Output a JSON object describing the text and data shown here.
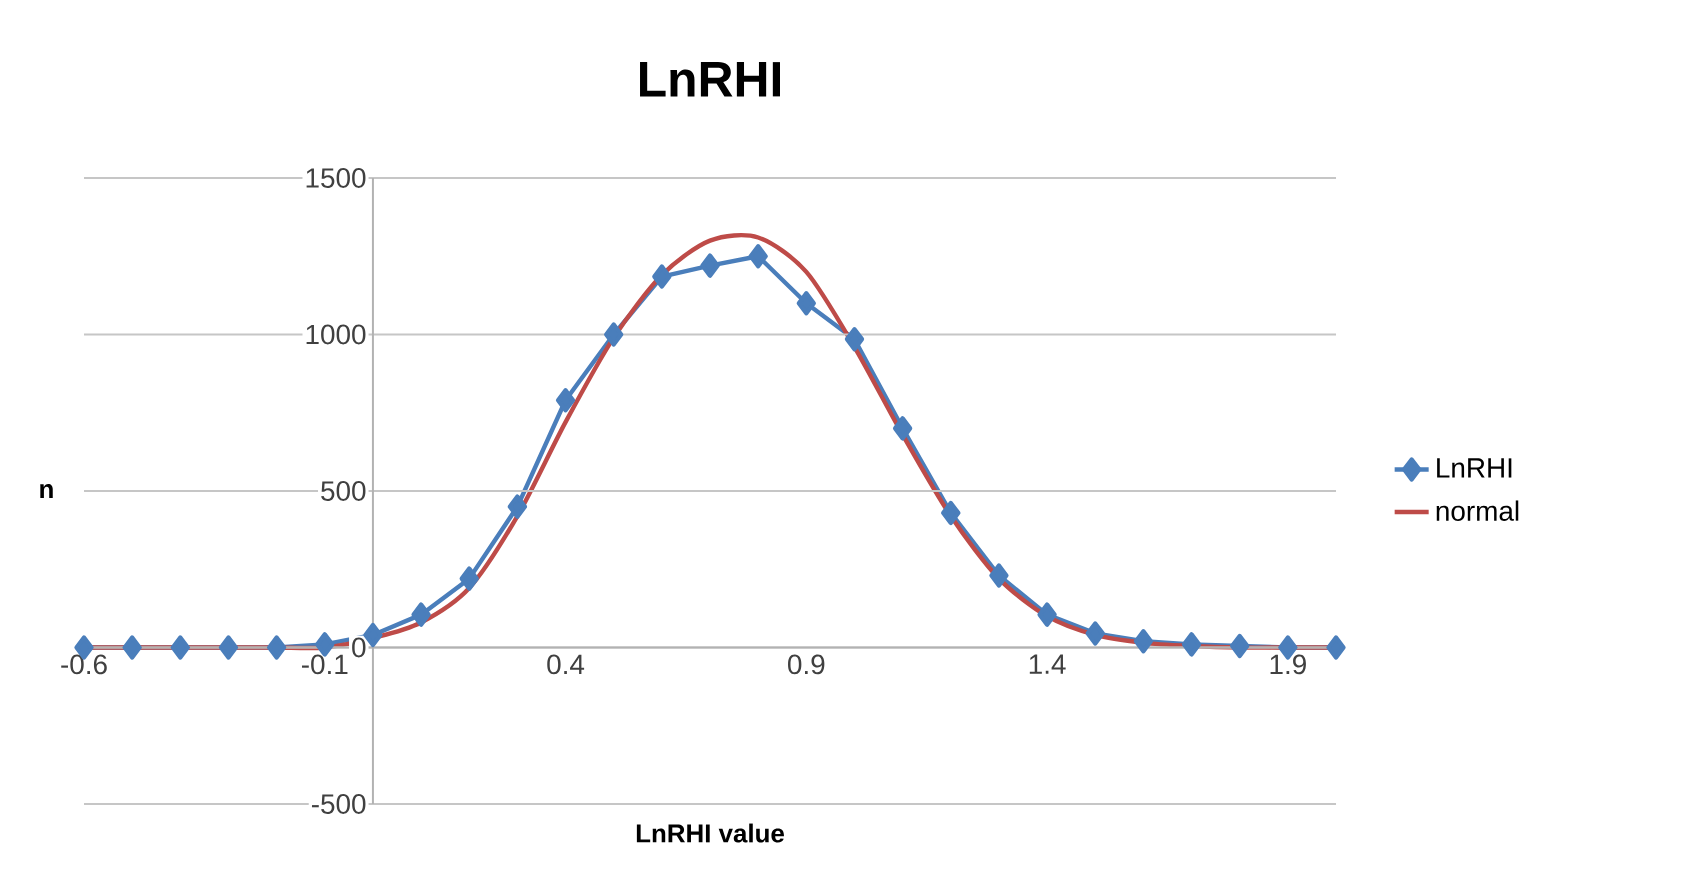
{
  "chart_data": {
    "type": "line",
    "title": "LnRHI",
    "xlabel": "LnRHI value",
    "ylabel": "n",
    "x": [
      -0.6,
      -0.5,
      -0.4,
      -0.3,
      -0.2,
      -0.1,
      0.0,
      0.1,
      0.2,
      0.3,
      0.4,
      0.5,
      0.6,
      0.7,
      0.8,
      0.9,
      1.0,
      1.1,
      1.2,
      1.3,
      1.4,
      1.5,
      1.6,
      1.7,
      1.8,
      1.9,
      2.0
    ],
    "series": [
      {
        "name": "LnRHI",
        "color": "#4a7ebb",
        "marker": "diamond",
        "values": [
          0,
          0,
          0,
          0,
          0,
          10,
          40,
          105,
          220,
          450,
          790,
          1000,
          1185,
          1220,
          1250,
          1100,
          985,
          700,
          430,
          230,
          105,
          45,
          20,
          10,
          5,
          0,
          0
        ]
      },
      {
        "name": "normal",
        "color": "#be4b48",
        "marker": "none",
        "values": [
          0,
          0,
          0,
          0,
          0,
          0,
          30,
          80,
          190,
          420,
          720,
          990,
          1190,
          1300,
          1310,
          1200,
          960,
          680,
          420,
          220,
          100,
          40,
          15,
          5,
          0,
          0,
          0
        ]
      }
    ],
    "xlim": [
      -0.6,
      2.0
    ],
    "xticks": [
      -0.6,
      -0.1,
      0.4,
      0.9,
      1.4,
      1.9
    ],
    "ylim": [
      -500,
      1500
    ],
    "yticks": [
      -500,
      0,
      500,
      1000,
      1500
    ],
    "grid": "y",
    "legend": "right"
  }
}
